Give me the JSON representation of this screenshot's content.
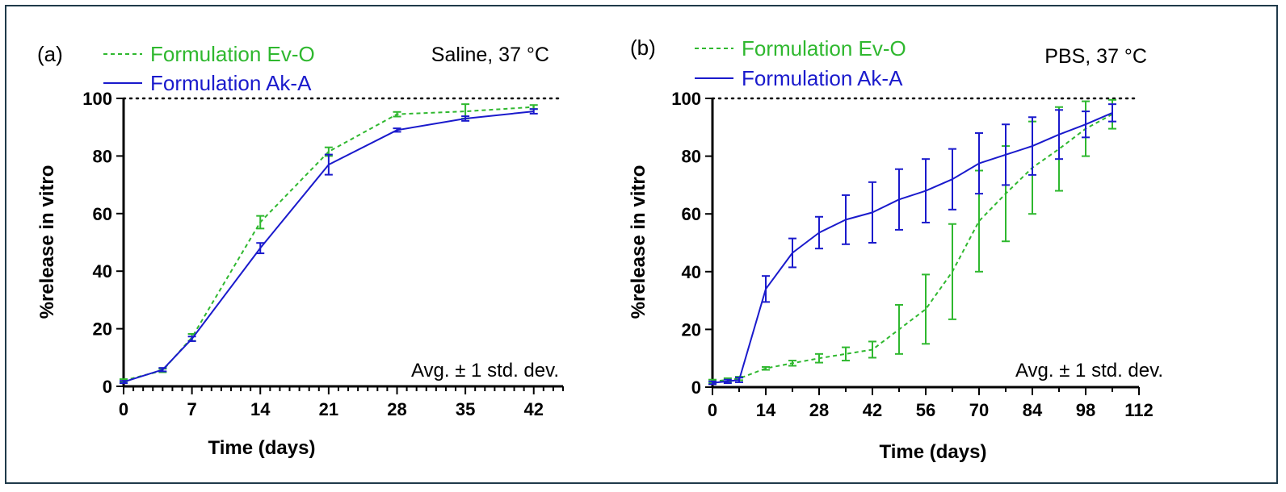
{
  "colors": {
    "ev_o": "#2fb82f",
    "ak_a": "#1a1acc"
  },
  "chart_data": [
    {
      "type": "line",
      "panel_label": "(a)",
      "condition": "Saline, 37 °C",
      "note": "Avg. ± 1 std. dev.",
      "xlabel": "Time (days)",
      "ylabel": "%release in vitro",
      "xlim": [
        0,
        45
      ],
      "ylim": [
        0,
        100
      ],
      "xticks": [
        0,
        7,
        14,
        21,
        28,
        35,
        42
      ],
      "xtick_labels": [
        "0",
        "7",
        "14",
        "21",
        "28",
        "35",
        "42"
      ],
      "minor_xtick_step": 1,
      "yticks": [
        0,
        20,
        40,
        60,
        80,
        100
      ],
      "ytick_labels": [
        "0",
        "20",
        "40",
        "60",
        "80",
        "100"
      ],
      "reference_line_y": 100,
      "legend": [
        "Formulation Ev-O",
        "Formulation Ak-A"
      ],
      "series": [
        {
          "name": "Formulation Ev-O",
          "style": "dashed",
          "x": [
            0,
            4,
            7,
            14,
            21,
            28,
            35,
            42
          ],
          "y": [
            2,
            5.5,
            17,
            57,
            81.5,
            94.5,
            95.5,
            97
          ],
          "err": [
            0.5,
            0.6,
            1.2,
            2.2,
            1.5,
            0.8,
            2.5,
            0.7
          ]
        },
        {
          "name": "Formulation Ak-A",
          "style": "solid",
          "x": [
            0,
            4,
            7,
            14,
            21,
            28,
            35,
            42
          ],
          "y": [
            1.5,
            5.8,
            16.5,
            48,
            77,
            89,
            93,
            95.5
          ],
          "err": [
            0.4,
            0.6,
            0.8,
            1.8,
            3.5,
            0.6,
            0.8,
            0.8
          ]
        }
      ]
    },
    {
      "type": "line",
      "panel_label": "(b)",
      "condition": "PBS, 37 °C",
      "note": "Avg. ± 1 std. dev.",
      "xlabel": "Time (days)",
      "ylabel": "%release in vitro",
      "xlim": [
        0,
        112
      ],
      "ylim": [
        0,
        100
      ],
      "xticks": [
        0,
        14,
        28,
        42,
        56,
        70,
        84,
        98,
        112
      ],
      "xtick_labels": [
        "0",
        "14",
        "28",
        "42",
        "56",
        "70",
        "84",
        "98",
        "112"
      ],
      "minor_xtick_step": 7,
      "yticks": [
        0,
        20,
        40,
        60,
        80,
        100
      ],
      "ytick_labels": [
        "0",
        "20",
        "40",
        "60",
        "80",
        "100"
      ],
      "reference_line_y": 100,
      "legend": [
        "Formulation Ev-O",
        "Formulation Ak-A"
      ],
      "series": [
        {
          "name": "Formulation Ev-O",
          "style": "dashed",
          "x": [
            0,
            4,
            7,
            14,
            21,
            28,
            35,
            42,
            49,
            56,
            63,
            70,
            77,
            84,
            91,
            98,
            105
          ],
          "y": [
            2,
            2.5,
            3,
            6.5,
            8.3,
            10,
            11.5,
            13,
            20,
            27,
            40,
            57.5,
            67,
            76,
            82.5,
            89.5,
            94.5
          ],
          "err": [
            0.6,
            0.6,
            0.6,
            0.5,
            0.9,
            1.5,
            2.3,
            2.8,
            8.5,
            12,
            16.5,
            17.5,
            16.5,
            16,
            14.5,
            9.5,
            5
          ]
        },
        {
          "name": "Formulation Ak-A",
          "style": "solid",
          "x": [
            0,
            4,
            7,
            14,
            21,
            28,
            35,
            42,
            49,
            56,
            63,
            70,
            77,
            84,
            91,
            98,
            105
          ],
          "y": [
            1.5,
            2,
            2.5,
            34,
            46.5,
            53.5,
            58,
            60.5,
            65,
            68,
            72,
            77.5,
            80.5,
            83.5,
            87.5,
            91,
            95
          ],
          "err": [
            0.5,
            0.6,
            0.8,
            4.5,
            5,
            5.5,
            8.5,
            10.5,
            10.5,
            11,
            10.5,
            10.5,
            10.5,
            10,
            8.5,
            4.5,
            3
          ]
        }
      ]
    }
  ]
}
